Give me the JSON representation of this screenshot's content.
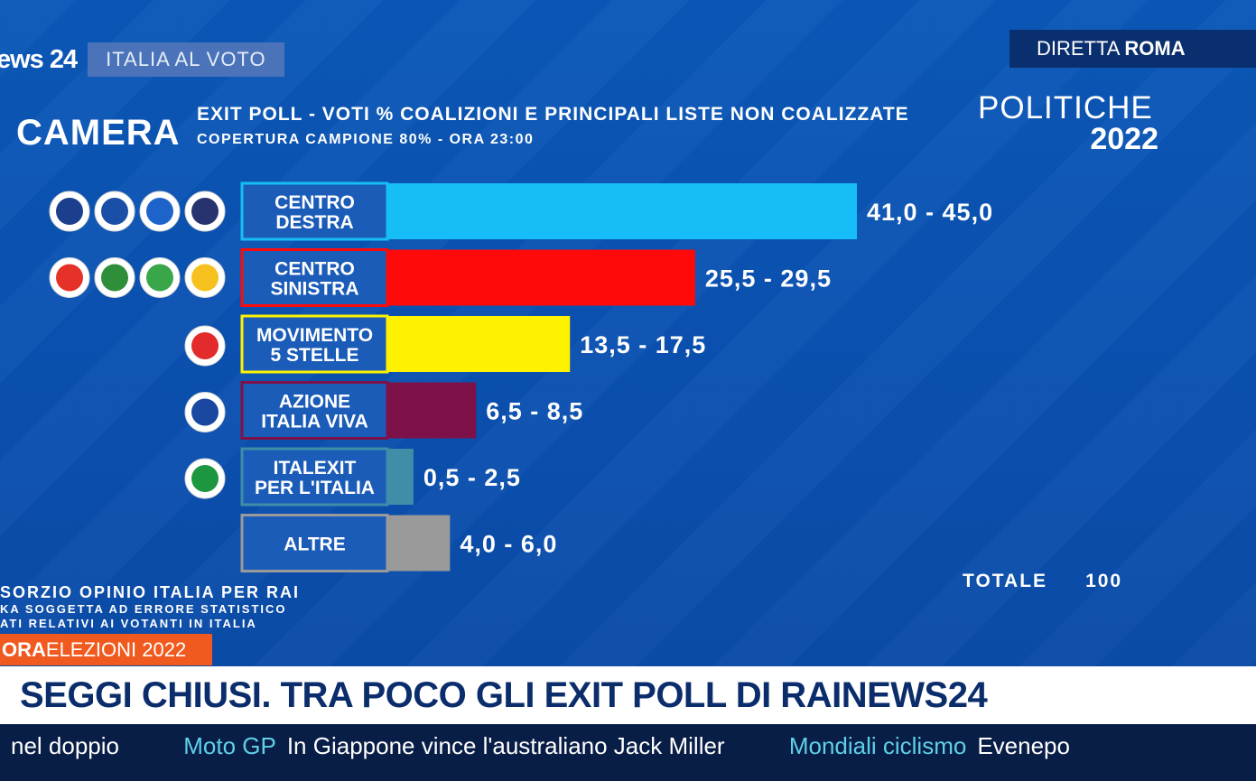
{
  "header": {
    "logo": "ews 24",
    "section_tag": "ITALIA AL VOTO",
    "live_label": "DIRETTA",
    "live_location": "ROMA"
  },
  "title": {
    "chamber": "CAMERA",
    "line1": "EXIT POLL - VOTI % COALIZIONI E PRINCIPALI LISTE NON COALIZZATE",
    "line2": "COPERTURA CAMPIONE 80% - ORA 23:00",
    "election": "POLITICHE",
    "year": "2022"
  },
  "chart_data": {
    "type": "bar",
    "orientation": "horizontal",
    "categories": [
      "CENTRO DESTRA",
      "CENTRO SINISTRA",
      "MOVIMENTO 5 STELLE",
      "AZIONE ITALIA VIVA",
      "ITALEXIT PER L'ITALIA",
      "ALTRE"
    ],
    "label_lines": [
      [
        "CENTRO",
        "DESTRA"
      ],
      [
        "CENTRO",
        "SINISTRA"
      ],
      [
        "MOVIMENTO",
        "5 STELLE"
      ],
      [
        "AZIONE",
        "ITALIA VIVA"
      ],
      [
        "ITALEXIT",
        "PER L'ITALIA"
      ],
      [
        "ALTRE"
      ]
    ],
    "ranges": [
      [
        41.0,
        45.0
      ],
      [
        25.5,
        29.5
      ],
      [
        13.5,
        17.5
      ],
      [
        6.5,
        8.5
      ],
      [
        0.5,
        2.5
      ],
      [
        4.0,
        6.0
      ]
    ],
    "value_labels": [
      "41,0 - 45,0",
      "25,5 - 29,5",
      "13,5 - 17,5",
      "6,5 - 8,5",
      "0,5 - 2,5",
      "4,0 - 6,0"
    ],
    "colors": [
      "#17bdf6",
      "#ff0a0a",
      "#fff200",
      "#7d1148",
      "#3d8ea6",
      "#9a9a9a"
    ],
    "label_box_colors": [
      "#1a5cb8",
      "#1a5cb8",
      "#1a5cb8",
      "#1a5cb8",
      "#1a5cb8",
      "#1a5cb8"
    ],
    "logo_counts": [
      4,
      4,
      1,
      1,
      1,
      0
    ],
    "logo_colors": [
      [
        "#1b3f8c",
        "#1a4fa8",
        "#1e63c9",
        "#26336e"
      ],
      [
        "#e53127",
        "#2f8e3a",
        "#3aa64a",
        "#f6c11e"
      ],
      [
        "#e32b2b"
      ],
      [
        "#1a48a0"
      ],
      [
        "#1d9640"
      ]
    ],
    "xlim": [
      0,
      45
    ]
  },
  "footer": {
    "source": "SORZIO OPINIO ITALIA PER RAI",
    "note1": "KA SOGGETTA AD ERRORE STATISTICO",
    "note2": "ATI RELATIVI AI VOTANTI IN ITALIA",
    "total_label": "TOTALE",
    "total_value": "100"
  },
  "banner": {
    "tag_bold": "ORA",
    "tag_text": "ELEZIONI 2022",
    "headline": "SEGGI CHIUSI. TRA POCO GLI EXIT POLL DI RAINEWS24"
  },
  "ticker": {
    "items": [
      {
        "category": "",
        "text": "nel doppio"
      },
      {
        "category": "Moto GP",
        "text": "In Giappone vince l'australiano Jack Miller"
      },
      {
        "category": "Mondiali ciclismo",
        "text": "Evenepo"
      }
    ]
  }
}
